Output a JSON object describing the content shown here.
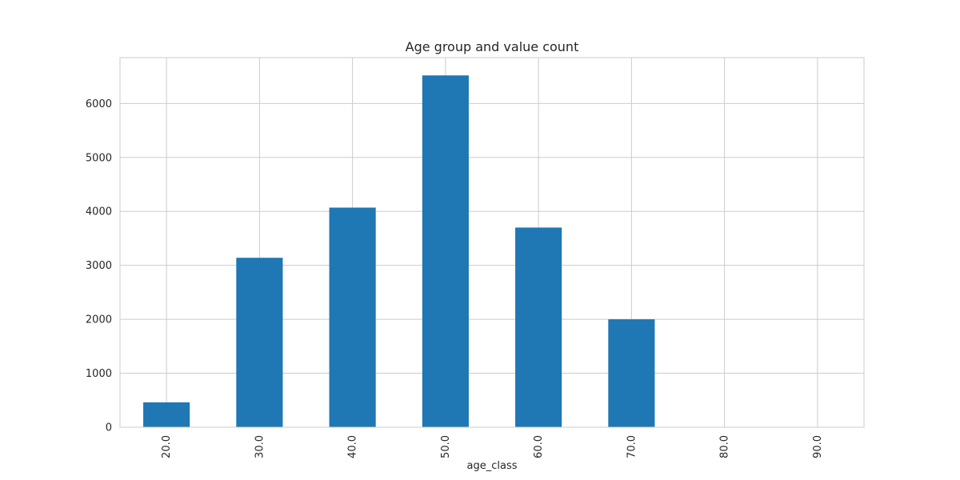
{
  "chart_data": {
    "type": "bar",
    "title": "Age group and value count",
    "xlabel": "age_class",
    "ylabel": "",
    "categories": [
      "20.0",
      "30.0",
      "40.0",
      "50.0",
      "60.0",
      "70.0",
      "80.0",
      "90.0"
    ],
    "values": [
      460,
      3140,
      4070,
      6520,
      3700,
      2000,
      0,
      0
    ],
    "ylim": [
      0,
      6850
    ],
    "yticks": [
      0,
      1000,
      2000,
      3000,
      4000,
      5000,
      6000
    ],
    "grid": true,
    "bar_color": "#1f77b4",
    "grid_color": "#cccccc"
  }
}
